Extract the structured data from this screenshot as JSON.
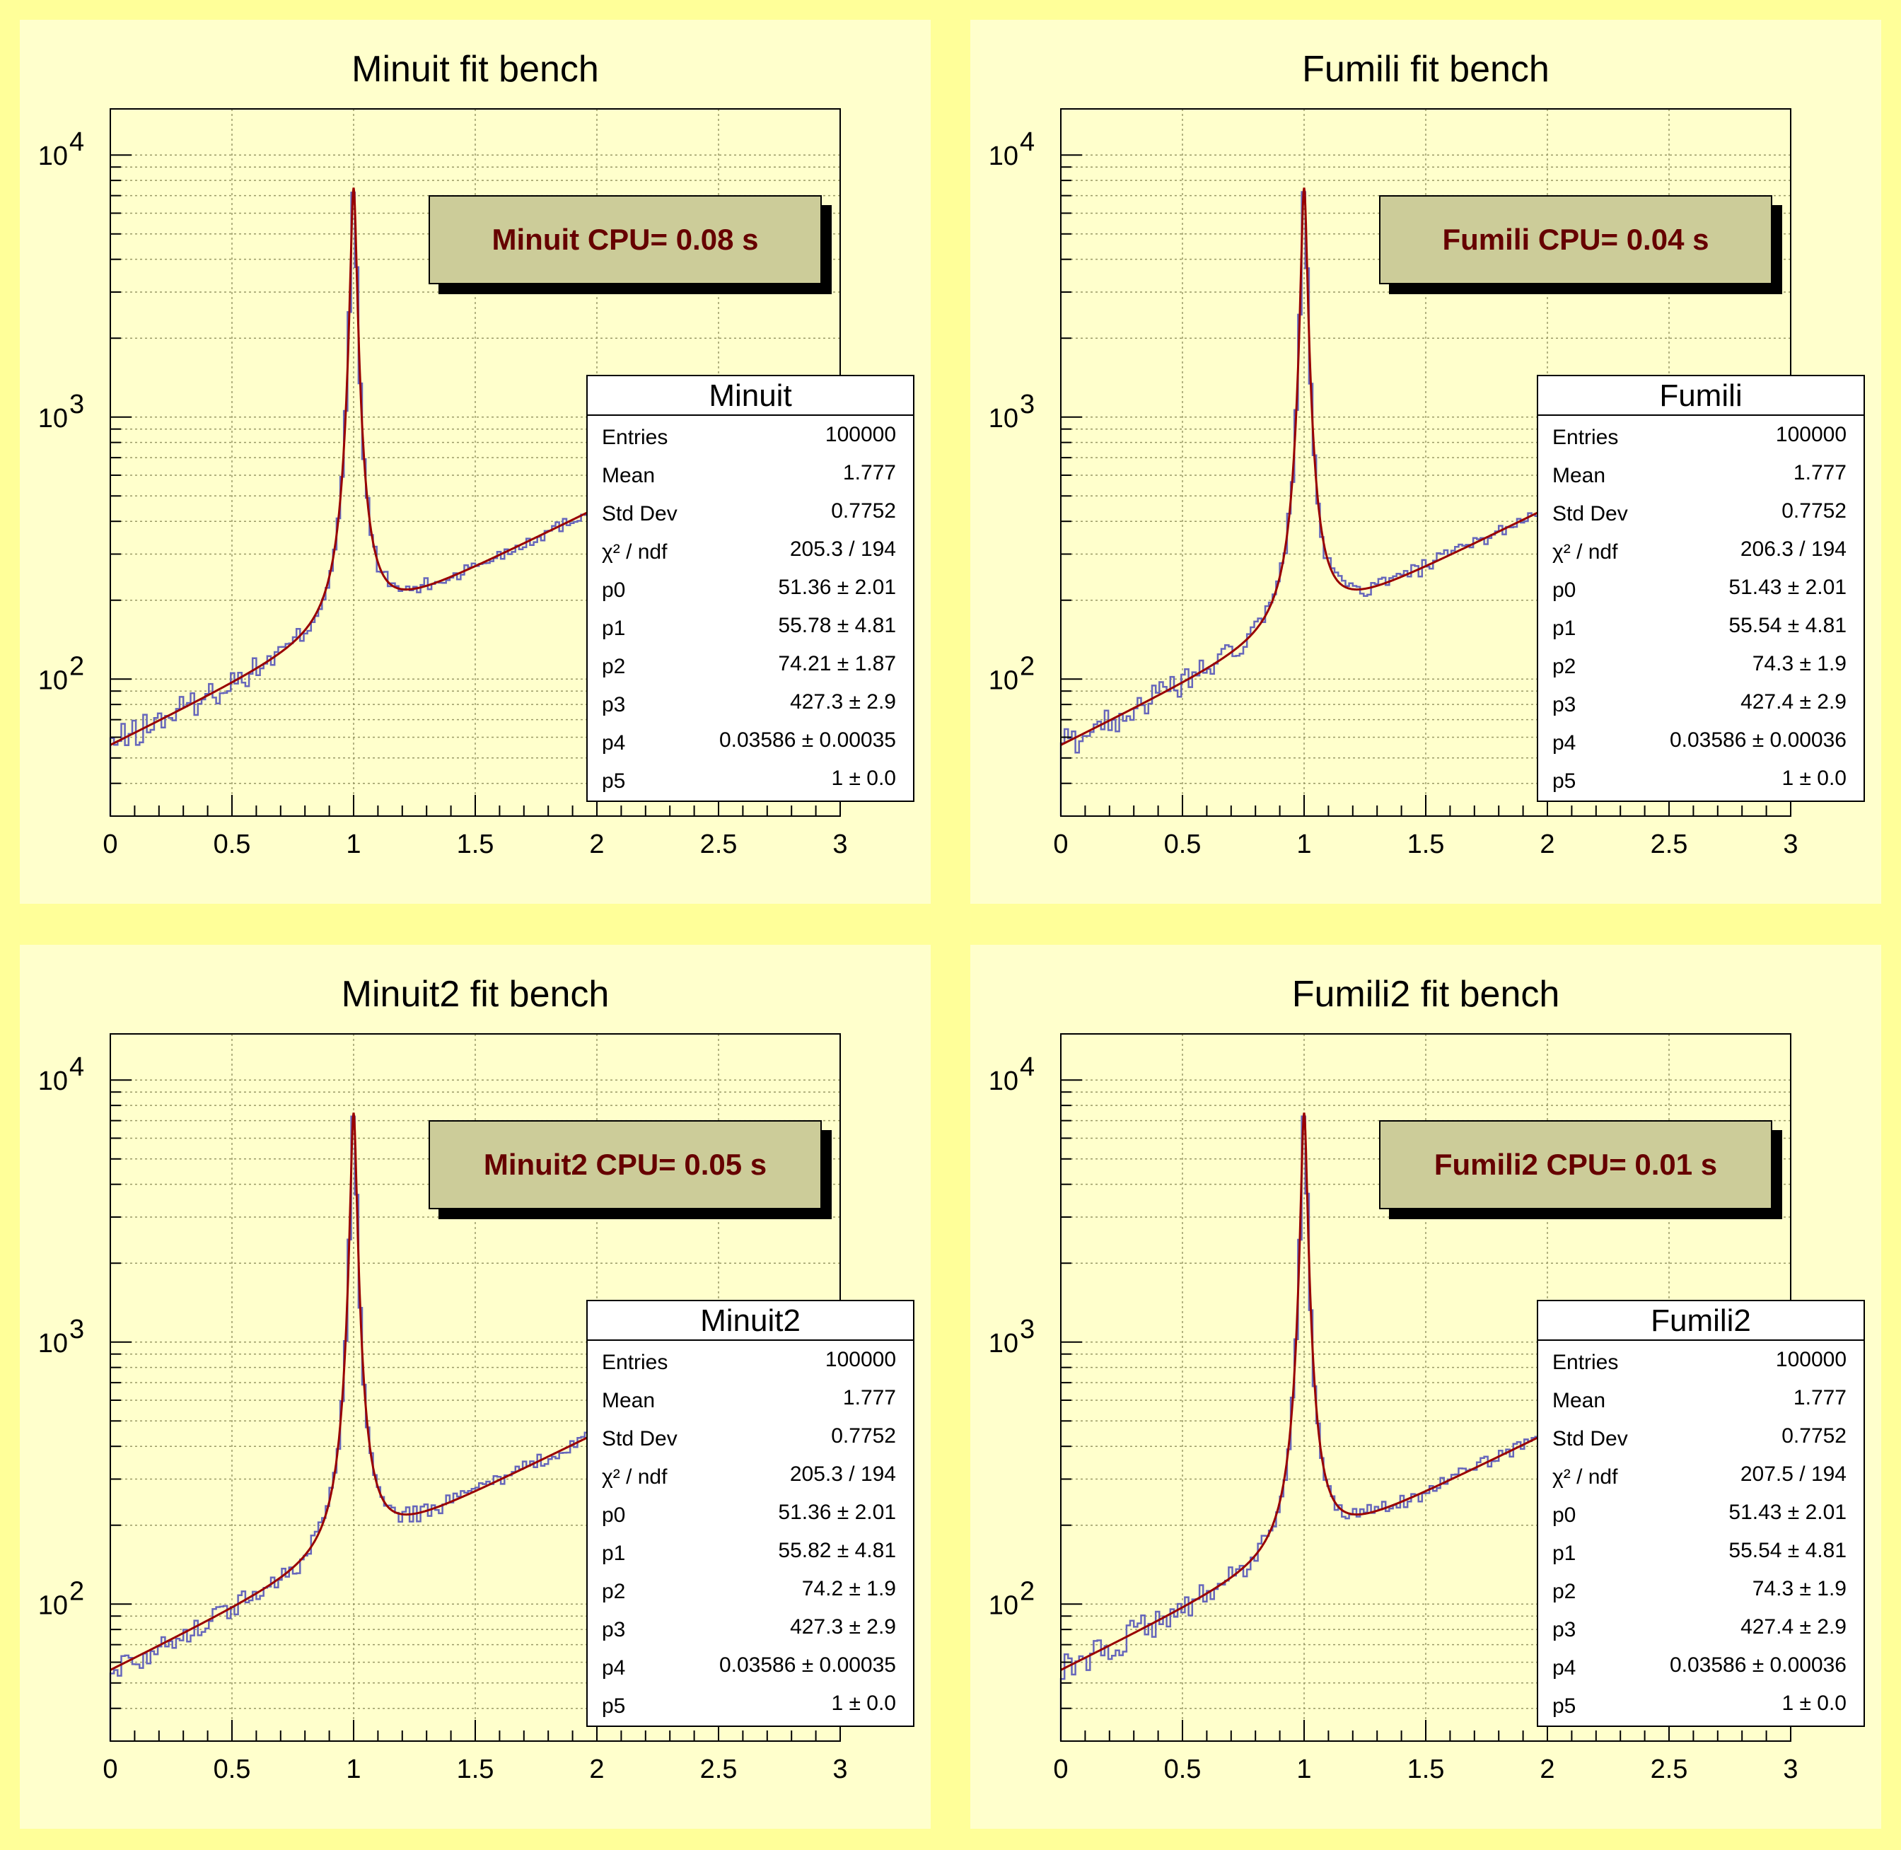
{
  "colors": {
    "canvas": "#ffff99",
    "pad": "#ffffcc",
    "histogram": "#6666bb",
    "fit_curve": "#990000",
    "cpu_box": "#cccc99",
    "cpu_text": "#660000",
    "grid": "#999966"
  },
  "chart_data": [
    {
      "type": "line",
      "title": "Minuit fit bench",
      "cpu_label": "Minuit CPU= 0.08 s",
      "xlabel": "",
      "ylabel": "",
      "xlim": [
        0,
        3
      ],
      "ylim": [
        30,
        15000
      ],
      "y_scale": "log",
      "grid": true,
      "x_ticks": [
        "0",
        "0.5",
        "1",
        "1.5",
        "2",
        "2.5",
        "3"
      ],
      "y_ticks": [
        {
          "base": "10",
          "exp": "2",
          "value": 100
        },
        {
          "base": "10",
          "exp": "3",
          "value": 1000
        },
        {
          "base": "10",
          "exp": "4",
          "value": 10000
        }
      ],
      "series": [
        {
          "kind": "histogram",
          "bins": 200,
          "range": [
            0,
            3
          ],
          "entries": 100000
        },
        {
          "kind": "fit",
          "function": "background + lorentzian",
          "peak_x": 1.0,
          "peak_y": 7500
        }
      ],
      "stats": {
        "title": "Minuit",
        "rows": [
          {
            "label": "Entries",
            "value": "100000",
            "error": ""
          },
          {
            "label": "Mean",
            "value": "1.777",
            "error": ""
          },
          {
            "label": "Std Dev",
            "value": "0.7752",
            "error": ""
          },
          {
            "label": "χ² / ndf",
            "value": "205.3 / 194",
            "error": ""
          },
          {
            "label": "p0",
            "value": "51.36",
            "error": "2.01"
          },
          {
            "label": "p1",
            "value": "55.78",
            "error": "4.81"
          },
          {
            "label": "p2",
            "value": "74.21",
            "error": "1.87"
          },
          {
            "label": "p3",
            "value": "427.3",
            "error": "2.9"
          },
          {
            "label": "p4",
            "value": "0.03586",
            "error": "0.00035"
          },
          {
            "label": "p5",
            "value": "1",
            "error": "0.0"
          }
        ]
      }
    },
    {
      "type": "line",
      "title": "Fumili fit bench",
      "cpu_label": "Fumili CPU= 0.04 s",
      "xlabel": "",
      "ylabel": "",
      "xlim": [
        0,
        3
      ],
      "ylim": [
        30,
        15000
      ],
      "y_scale": "log",
      "grid": true,
      "x_ticks": [
        "0",
        "0.5",
        "1",
        "1.5",
        "2",
        "2.5",
        "3"
      ],
      "y_ticks": [
        {
          "base": "10",
          "exp": "2",
          "value": 100
        },
        {
          "base": "10",
          "exp": "3",
          "value": 1000
        },
        {
          "base": "10",
          "exp": "4",
          "value": 10000
        }
      ],
      "series": [
        {
          "kind": "histogram",
          "bins": 200,
          "range": [
            0,
            3
          ],
          "entries": 100000
        },
        {
          "kind": "fit",
          "function": "background + lorentzian",
          "peak_x": 1.0,
          "peak_y": 7500
        }
      ],
      "stats": {
        "title": "Fumili",
        "rows": [
          {
            "label": "Entries",
            "value": "100000",
            "error": ""
          },
          {
            "label": "Mean",
            "value": "1.777",
            "error": ""
          },
          {
            "label": "Std Dev",
            "value": "0.7752",
            "error": ""
          },
          {
            "label": "χ² / ndf",
            "value": "206.3 / 194",
            "error": ""
          },
          {
            "label": "p0",
            "value": "51.43",
            "error": "2.01"
          },
          {
            "label": "p1",
            "value": "55.54",
            "error": "4.81"
          },
          {
            "label": "p2",
            "value": "74.3",
            "error": "1.9"
          },
          {
            "label": "p3",
            "value": "427.4",
            "error": "2.9"
          },
          {
            "label": "p4",
            "value": "0.03586",
            "error": "0.00036"
          },
          {
            "label": "p5",
            "value": "1",
            "error": "0.0"
          }
        ]
      }
    },
    {
      "type": "line",
      "title": "Minuit2 fit bench",
      "cpu_label": "Minuit2 CPU= 0.05 s",
      "xlabel": "",
      "ylabel": "",
      "xlim": [
        0,
        3
      ],
      "ylim": [
        30,
        15000
      ],
      "y_scale": "log",
      "grid": true,
      "x_ticks": [
        "0",
        "0.5",
        "1",
        "1.5",
        "2",
        "2.5",
        "3"
      ],
      "y_ticks": [
        {
          "base": "10",
          "exp": "2",
          "value": 100
        },
        {
          "base": "10",
          "exp": "3",
          "value": 1000
        },
        {
          "base": "10",
          "exp": "4",
          "value": 10000
        }
      ],
      "series": [
        {
          "kind": "histogram",
          "bins": 200,
          "range": [
            0,
            3
          ],
          "entries": 100000
        },
        {
          "kind": "fit",
          "function": "background + lorentzian",
          "peak_x": 1.0,
          "peak_y": 7500
        }
      ],
      "stats": {
        "title": "Minuit2",
        "rows": [
          {
            "label": "Entries",
            "value": "100000",
            "error": ""
          },
          {
            "label": "Mean",
            "value": "1.777",
            "error": ""
          },
          {
            "label": "Std Dev",
            "value": "0.7752",
            "error": ""
          },
          {
            "label": "χ² / ndf",
            "value": "205.3 / 194",
            "error": ""
          },
          {
            "label": "p0",
            "value": "51.36",
            "error": "2.01"
          },
          {
            "label": "p1",
            "value": "55.82",
            "error": "4.81"
          },
          {
            "label": "p2",
            "value": "74.2",
            "error": "1.9"
          },
          {
            "label": "p3",
            "value": "427.3",
            "error": "2.9"
          },
          {
            "label": "p4",
            "value": "0.03586",
            "error": "0.00035"
          },
          {
            "label": "p5",
            "value": "1",
            "error": "0.0"
          }
        ]
      }
    },
    {
      "type": "line",
      "title": "Fumili2 fit bench",
      "cpu_label": "Fumili2 CPU= 0.01 s",
      "xlabel": "",
      "ylabel": "",
      "xlim": [
        0,
        3
      ],
      "ylim": [
        30,
        15000
      ],
      "y_scale": "log",
      "grid": true,
      "x_ticks": [
        "0",
        "0.5",
        "1",
        "1.5",
        "2",
        "2.5",
        "3"
      ],
      "y_ticks": [
        {
          "base": "10",
          "exp": "2",
          "value": 100
        },
        {
          "base": "10",
          "exp": "3",
          "value": 1000
        },
        {
          "base": "10",
          "exp": "4",
          "value": 10000
        }
      ],
      "series": [
        {
          "kind": "histogram",
          "bins": 200,
          "range": [
            0,
            3
          ],
          "entries": 100000
        },
        {
          "kind": "fit",
          "function": "background + lorentzian",
          "peak_x": 1.0,
          "peak_y": 7500
        }
      ],
      "stats": {
        "title": "Fumili2",
        "rows": [
          {
            "label": "Entries",
            "value": "100000",
            "error": ""
          },
          {
            "label": "Mean",
            "value": "1.777",
            "error": ""
          },
          {
            "label": "Std Dev",
            "value": "0.7752",
            "error": ""
          },
          {
            "label": "χ² / ndf",
            "value": "207.5 / 194",
            "error": ""
          },
          {
            "label": "p0",
            "value": "51.43",
            "error": "2.01"
          },
          {
            "label": "p1",
            "value": "55.54",
            "error": "4.81"
          },
          {
            "label": "p2",
            "value": "74.3",
            "error": "1.9"
          },
          {
            "label": "p3",
            "value": "427.4",
            "error": "2.9"
          },
          {
            "label": "p4",
            "value": "0.03586",
            "error": "0.00036"
          },
          {
            "label": "p5",
            "value": "1",
            "error": "0.0"
          }
        ]
      }
    }
  ]
}
